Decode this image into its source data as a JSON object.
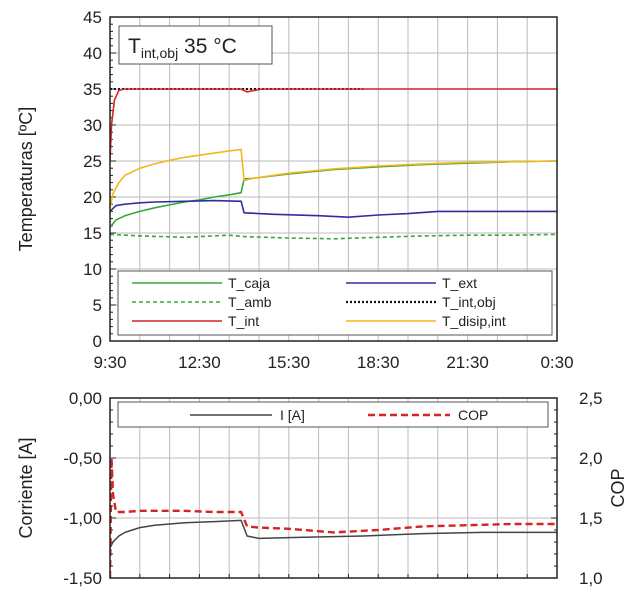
{
  "chart_data": [
    {
      "type": "line",
      "ylabel": "Temperaturas [ºC]",
      "ylim": [
        0,
        45
      ],
      "yticks": [
        "0",
        "5",
        "10",
        "15",
        "20",
        "25",
        "30",
        "35",
        "40",
        "45"
      ],
      "xlim_hours": [
        9.5,
        24.5
      ],
      "xticks": [
        "9:30",
        "12:30",
        "15:30",
        "18:30",
        "21:30",
        "0:30"
      ],
      "grid": true,
      "annotation": {
        "main": "T",
        "sub": "int,obj",
        "value": " 35 °C"
      },
      "legend": "bottom, inside, two columns",
      "series": [
        {
          "name": "T_caja",
          "color": "#3aa53a",
          "dash": "solid",
          "x": [
            9.5,
            9.7,
            10.0,
            10.5,
            11.0,
            11.5,
            12.0,
            12.5,
            13.0,
            13.5,
            13.9,
            14.0,
            14.3,
            15.5,
            17.0,
            18.5,
            20.0,
            21.5,
            23.0,
            24.5
          ],
          "y": [
            15.8,
            16.8,
            17.4,
            18.0,
            18.5,
            18.9,
            19.3,
            19.6,
            20.0,
            20.3,
            20.6,
            22.5,
            22.6,
            23.2,
            23.8,
            24.2,
            24.5,
            24.7,
            24.9,
            25.0
          ]
        },
        {
          "name": "T_ext",
          "color": "#2e2e9e",
          "dash": "solid",
          "x": [
            9.5,
            9.7,
            10.0,
            10.5,
            11.0,
            12.0,
            13.0,
            13.9,
            14.0,
            15.0,
            16.5,
            17.5,
            18.5,
            19.5,
            20.5,
            21.5,
            22.5,
            23.5,
            24.5
          ],
          "y": [
            18.0,
            18.8,
            19.0,
            19.2,
            19.3,
            19.4,
            19.5,
            19.4,
            17.8,
            17.6,
            17.4,
            17.2,
            17.5,
            17.7,
            18.0,
            18.0,
            18.0,
            18.0,
            18.0
          ]
        },
        {
          "name": "T_amb",
          "color": "#3aa53a",
          "dash": "4,3",
          "x": [
            9.5,
            10.5,
            12.0,
            13.5,
            14.0,
            15.5,
            17.0,
            18.5,
            20.0,
            21.5,
            23.0,
            24.5
          ],
          "y": [
            14.8,
            14.6,
            14.4,
            14.7,
            14.5,
            14.3,
            14.2,
            14.4,
            14.6,
            14.7,
            14.7,
            14.8
          ]
        },
        {
          "name": "T_int,obj",
          "color": "#111111",
          "dash": "2,2",
          "x": [
            9.5,
            9.6,
            18.0
          ],
          "y": [
            35.0,
            35.0,
            35.0
          ]
        },
        {
          "name": "T_int",
          "color": "#d42424",
          "dash": "solid",
          "x": [
            9.5,
            9.55,
            9.65,
            9.8,
            10.0,
            12.0,
            13.9,
            14.1,
            14.6,
            16.0,
            18.0,
            20.0,
            24.5
          ],
          "y": [
            25.0,
            30.0,
            33.5,
            34.8,
            35.0,
            35.0,
            35.0,
            34.6,
            35.0,
            35.0,
            35.0,
            35.0,
            35.0
          ]
        },
        {
          "name": "T_disip,int",
          "color": "#f2b71c",
          "dash": "solid",
          "x": [
            9.5,
            9.6,
            9.8,
            10.0,
            10.5,
            11.0,
            11.5,
            12.0,
            12.5,
            13.0,
            13.5,
            13.9,
            14.0,
            14.3,
            15.5,
            17.0,
            18.5,
            20.0,
            21.5,
            23.0,
            24.5
          ],
          "y": [
            18.5,
            20.5,
            22.0,
            23.0,
            24.0,
            24.6,
            25.1,
            25.5,
            25.8,
            26.1,
            26.4,
            26.6,
            22.3,
            22.6,
            23.3,
            23.9,
            24.3,
            24.6,
            24.8,
            24.9,
            25.0
          ]
        }
      ]
    },
    {
      "type": "line",
      "ylabel": "Corriente [A]",
      "ylim": [
        -1.5,
        0.0
      ],
      "yticks": [
        "-1,50",
        "-1,00",
        "-0,50",
        "0,00"
      ],
      "y2label": "COP",
      "y2lim": [
        1.0,
        2.5
      ],
      "y2ticks": [
        "1,0",
        "1,5",
        "2,0",
        "2,5"
      ],
      "xlim_hours": [
        9.5,
        24.5
      ],
      "grid": true,
      "legend": "top, inside",
      "series": [
        {
          "name": "I [A]",
          "color": "#444444",
          "dash": "solid",
          "axis": "left",
          "x": [
            9.5,
            9.6,
            9.8,
            10.0,
            10.5,
            11.0,
            12.0,
            13.0,
            13.9,
            14.1,
            14.5,
            16.0,
            18.0,
            20.0,
            22.0,
            24.5
          ],
          "y": [
            -1.25,
            -1.2,
            -1.15,
            -1.12,
            -1.08,
            -1.06,
            -1.04,
            -1.03,
            -1.02,
            -1.15,
            -1.17,
            -1.16,
            -1.15,
            -1.13,
            -1.12,
            -1.12
          ]
        },
        {
          "name": "COP",
          "color": "#d42424",
          "dash": "7,4",
          "axis": "right",
          "x": [
            9.5,
            9.55,
            9.6,
            9.7,
            10.0,
            10.5,
            11.0,
            12.0,
            13.0,
            13.9,
            14.1,
            14.5,
            15.5,
            17.0,
            18.5,
            20.0,
            21.5,
            23.0,
            24.5
          ],
          "y": [
            1.0,
            2.0,
            1.7,
            1.55,
            1.55,
            1.56,
            1.56,
            1.56,
            1.55,
            1.55,
            1.43,
            1.42,
            1.41,
            1.38,
            1.4,
            1.43,
            1.44,
            1.45,
            1.45
          ]
        }
      ]
    }
  ]
}
